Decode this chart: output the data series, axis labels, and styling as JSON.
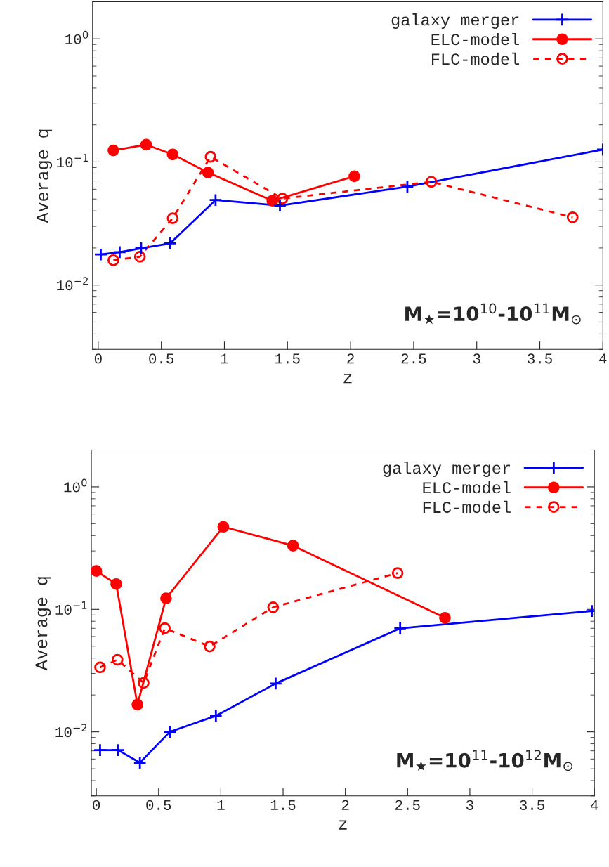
{
  "chart_data": [
    {
      "type": "line",
      "xlabel": "z",
      "ylabel": "Average q",
      "log": "y",
      "legend": "top right",
      "grid": false,
      "xlim": [
        -0.045,
        4
      ],
      "xticks": [
        0,
        0.5,
        1,
        1.5,
        2,
        2.5,
        3,
        3.5,
        4
      ],
      "ylim": [
        0.003,
        2
      ],
      "yticks": [
        {
          "value": 1,
          "label": "10$^{0}$"
        },
        {
          "value": 0.1,
          "label": "10$^{−1}$"
        },
        {
          "value": 0.01,
          "label": "10$^{−2}$"
        }
      ],
      "annotations": [
        "M$_{★}$=10$^{10}$-10$^{11}$M$_{⊙}$"
      ],
      "series": [
        {
          "name": "galaxy merger",
          "color": "#0000ff",
          "marker": "cross",
          "line_style": "solid",
          "x": [
            0.02,
            0.17,
            0.34,
            0.57,
            0.93,
            1.44,
            2.45,
            4
          ],
          "values": [
            0.0177,
            0.0185,
            0.0199,
            0.0218,
            0.049,
            0.0442,
            0.063,
            0.126
          ]
        },
        {
          "name": "ELC-model",
          "color": "#ff0000",
          "marker": "circle",
          "line_style": "solid",
          "x": [
            0.12,
            0.38,
            0.59,
            0.87,
            1.38,
            2.03
          ],
          "values": [
            0.124,
            0.138,
            0.115,
            0.082,
            0.0484,
            0.0765
          ]
        },
        {
          "name": "FLC-model",
          "color": "#ff0000",
          "marker": "circle",
          "line_style": "dashed",
          "x": [
            0.12,
            0.33,
            0.59,
            0.89,
            1.46,
            2.64,
            3.76
          ],
          "values": [
            0.0159,
            0.017,
            0.0349,
            0.11,
            0.0504,
            0.0689,
            0.0355
          ]
        }
      ]
    },
    {
      "type": "line",
      "xlabel": "z",
      "ylabel": "Average q",
      "log": "y",
      "legend": "top right",
      "grid": false,
      "xlim": [
        -0.04,
        4
      ],
      "xticks": [
        0,
        0.5,
        1,
        1.5,
        2,
        2.5,
        3,
        3.5,
        4
      ],
      "ylim": [
        0.003,
        2
      ],
      "yticks": [
        {
          "value": 1,
          "label": "10$^{0}$"
        },
        {
          "value": 0.1,
          "label": "10$^{−1}$"
        },
        {
          "value": 0.01,
          "label": "10$^{−2}$"
        }
      ],
      "annotations": [
        "M$_{★}$=10$^{11}$-10$^{12}$M$_{⊙}$"
      ],
      "series": [
        {
          "name": "galaxy merger",
          "color": "#0000ff",
          "marker": "cross",
          "line_style": "solid",
          "x": [
            0.03,
            0.175,
            0.35,
            0.59,
            0.96,
            1.44,
            2.44,
            3.98
          ],
          "values": [
            0.0071,
            0.0071,
            0.0056,
            0.01,
            0.0135,
            0.0248,
            0.07,
            0.097
          ]
        },
        {
          "name": "ELC-model",
          "color": "#ff0000",
          "marker": "circle",
          "line_style": "solid",
          "x": [
            0.0,
            0.16,
            0.33,
            0.56,
            1.02,
            1.58,
            2.8
          ],
          "values": [
            0.206,
            0.161,
            0.0167,
            0.123,
            0.472,
            0.331,
            0.0853
          ]
        },
        {
          "name": "FLC-model",
          "color": "#ff0000",
          "marker": "circle",
          "line_style": "dashed",
          "x": [
            0.03,
            0.17,
            0.38,
            0.55,
            0.91,
            1.42,
            2.42
          ],
          "values": [
            0.0336,
            0.0388,
            0.0251,
            0.0701,
            0.0498,
            0.104,
            0.198
          ]
        }
      ]
    }
  ]
}
